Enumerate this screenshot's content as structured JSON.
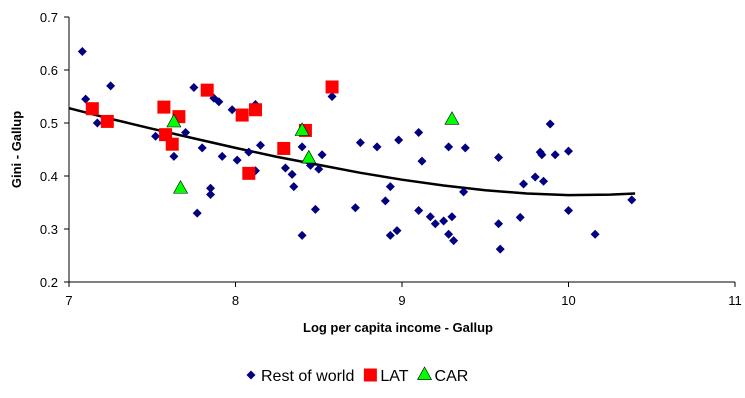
{
  "chart_data": {
    "type": "scatter",
    "title": "",
    "xlabel": "Log per capita income - Gallup",
    "ylabel": "Gini - Gallup",
    "xlim": [
      7,
      11
    ],
    "ylim": [
      0.2,
      0.7
    ],
    "x_ticks": [
      "7",
      "8",
      "9",
      "10",
      "11"
    ],
    "y_ticks": [
      "0.2",
      "0.3",
      "0.4",
      "0.5",
      "0.6",
      "0.7"
    ],
    "grid": false,
    "legend_position": "bottom",
    "series": [
      {
        "name": "Rest of world",
        "marker": "diamond",
        "color": "#000080",
        "points": [
          [
            7.08,
            0.635
          ],
          [
            7.1,
            0.545
          ],
          [
            7.17,
            0.5
          ],
          [
            7.25,
            0.57
          ],
          [
            7.52,
            0.475
          ],
          [
            7.6,
            0.47
          ],
          [
            7.63,
            0.437
          ],
          [
            7.7,
            0.482
          ],
          [
            7.75,
            0.567
          ],
          [
            7.77,
            0.33
          ],
          [
            7.8,
            0.453
          ],
          [
            7.85,
            0.377
          ],
          [
            7.85,
            0.365
          ],
          [
            7.87,
            0.547
          ],
          [
            7.9,
            0.54
          ],
          [
            7.92,
            0.437
          ],
          [
            7.98,
            0.525
          ],
          [
            8.01,
            0.43
          ],
          [
            8.08,
            0.445
          ],
          [
            8.12,
            0.535
          ],
          [
            8.12,
            0.41
          ],
          [
            8.15,
            0.458
          ],
          [
            8.3,
            0.415
          ],
          [
            8.34,
            0.403
          ],
          [
            8.35,
            0.38
          ],
          [
            8.4,
            0.455
          ],
          [
            8.4,
            0.288
          ],
          [
            8.45,
            0.42
          ],
          [
            8.48,
            0.337
          ],
          [
            8.5,
            0.413
          ],
          [
            8.52,
            0.44
          ],
          [
            8.58,
            0.55
          ],
          [
            8.72,
            0.34
          ],
          [
            8.75,
            0.463
          ],
          [
            8.85,
            0.455
          ],
          [
            8.9,
            0.353
          ],
          [
            8.93,
            0.38
          ],
          [
            8.93,
            0.288
          ],
          [
            8.97,
            0.297
          ],
          [
            8.98,
            0.468
          ],
          [
            9.1,
            0.482
          ],
          [
            9.1,
            0.335
          ],
          [
            9.12,
            0.428
          ],
          [
            9.17,
            0.323
          ],
          [
            9.2,
            0.31
          ],
          [
            9.25,
            0.315
          ],
          [
            9.28,
            0.29
          ],
          [
            9.28,
            0.455
          ],
          [
            9.3,
            0.323
          ],
          [
            9.31,
            0.278
          ],
          [
            9.37,
            0.37
          ],
          [
            9.38,
            0.453
          ],
          [
            9.58,
            0.435
          ],
          [
            9.58,
            0.31
          ],
          [
            9.59,
            0.262
          ],
          [
            9.71,
            0.322
          ],
          [
            9.73,
            0.385
          ],
          [
            9.8,
            0.398
          ],
          [
            9.83,
            0.445
          ],
          [
            9.84,
            0.44
          ],
          [
            9.85,
            0.39
          ],
          [
            9.89,
            0.498
          ],
          [
            9.92,
            0.44
          ],
          [
            10.0,
            0.447
          ],
          [
            10.0,
            0.335
          ],
          [
            10.16,
            0.29
          ],
          [
            10.38,
            0.355
          ]
        ]
      },
      {
        "name": "LAT",
        "marker": "square",
        "color": "#ff0000",
        "points": [
          [
            7.14,
            0.527
          ],
          [
            7.23,
            0.503
          ],
          [
            7.57,
            0.53
          ],
          [
            7.58,
            0.478
          ],
          [
            7.62,
            0.46
          ],
          [
            7.66,
            0.512
          ],
          [
            7.83,
            0.562
          ],
          [
            8.04,
            0.515
          ],
          [
            8.08,
            0.405
          ],
          [
            8.12,
            0.525
          ],
          [
            8.29,
            0.452
          ],
          [
            8.42,
            0.486
          ],
          [
            8.58,
            0.568
          ]
        ]
      },
      {
        "name": "CAR",
        "marker": "triangle",
        "color": "#00ff00",
        "points": [
          [
            7.63,
            0.503
          ],
          [
            7.67,
            0.378
          ],
          [
            8.4,
            0.487
          ],
          [
            8.44,
            0.435
          ],
          [
            9.3,
            0.508
          ]
        ]
      }
    ],
    "trendline": {
      "type": "polynomial",
      "color": "#000000",
      "points": [
        [
          7.0,
          0.528
        ],
        [
          7.25,
          0.508
        ],
        [
          7.5,
          0.489
        ],
        [
          7.75,
          0.471
        ],
        [
          8.0,
          0.453
        ],
        [
          8.25,
          0.436
        ],
        [
          8.5,
          0.421
        ],
        [
          8.75,
          0.406
        ],
        [
          9.0,
          0.393
        ],
        [
          9.25,
          0.382
        ],
        [
          9.5,
          0.373
        ],
        [
          9.75,
          0.367
        ],
        [
          10.0,
          0.364
        ],
        [
          10.25,
          0.365
        ],
        [
          10.4,
          0.367
        ]
      ]
    }
  }
}
